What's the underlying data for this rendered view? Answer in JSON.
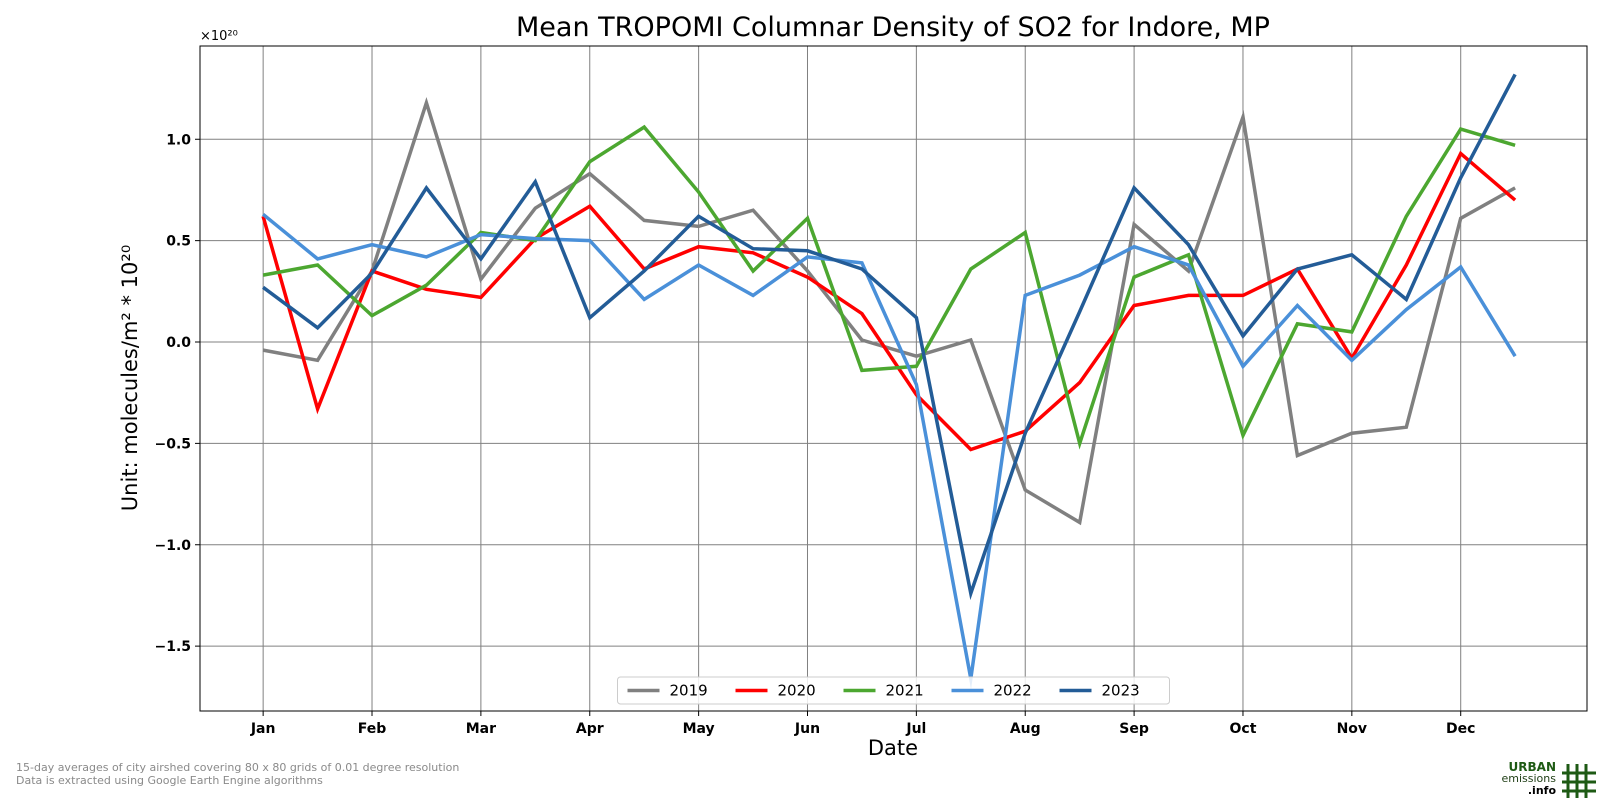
{
  "chart_data": {
    "type": "line",
    "title": "Mean TROPOMI Columnar Density of SO2 for Indore, MP",
    "xlabel": "Date",
    "ylabel": "Unit: molecules/m² * 10²⁰",
    "y_offset_label": "×10²⁰",
    "ylim": [
      -1.82,
      1.46
    ],
    "yticks": [
      -1.5,
      -1.0,
      -0.5,
      0.0,
      0.5,
      1.0
    ],
    "ytick_labels": [
      "−1.5",
      "−1.0",
      "−0.5",
      "0.0",
      "0.5",
      "1.0"
    ],
    "xlim": [
      0.42,
      13.16
    ],
    "month_ticks": [
      1,
      2,
      3,
      4,
      5,
      6,
      7,
      8,
      9,
      10,
      11,
      12
    ],
    "month_labels": [
      "Jan",
      "Feb",
      "Mar",
      "Apr",
      "May",
      "Jun",
      "Jul",
      "Aug",
      "Sep",
      "Oct",
      "Nov",
      "Dec"
    ],
    "x": [
      1,
      1.5,
      2,
      2.5,
      3,
      3.5,
      4,
      4.5,
      5,
      5.5,
      6,
      6.5,
      7,
      7.5,
      8,
      8.5,
      9,
      9.5,
      10,
      10.5,
      11,
      11.5,
      12,
      12.5
    ],
    "grid": true,
    "legend_position": "bottom-center",
    "series": [
      {
        "name": "2019",
        "color": "#808080",
        "values": [
          -0.04,
          -0.09,
          0.35,
          1.18,
          0.31,
          0.66,
          0.83,
          0.6,
          0.57,
          0.65,
          0.35,
          0.01,
          -0.07,
          0.01,
          -0.73,
          -0.89,
          0.58,
          0.35,
          1.11,
          -0.56,
          -0.45,
          -0.42,
          0.61,
          0.76
        ]
      },
      {
        "name": "2020",
        "color": "#ff0000",
        "values": [
          0.62,
          -0.33,
          0.35,
          0.26,
          0.22,
          0.51,
          0.67,
          0.36,
          0.47,
          0.44,
          0.32,
          0.14,
          -0.26,
          -0.53,
          -0.44,
          -0.2,
          0.18,
          0.23,
          0.23,
          0.36,
          -0.08,
          0.38,
          0.93,
          0.7
        ]
      },
      {
        "name": "2021",
        "color": "#4ca730",
        "values": [
          0.33,
          0.38,
          0.13,
          0.28,
          0.54,
          0.5,
          0.89,
          1.06,
          0.74,
          0.35,
          0.61,
          -0.14,
          -0.12,
          0.36,
          0.54,
          -0.5,
          0.32,
          0.43,
          -0.46,
          0.09,
          0.05,
          0.62,
          1.05,
          0.97
        ]
      },
      {
        "name": "2022",
        "color": "#4a90d9",
        "values": [
          0.63,
          0.41,
          0.48,
          0.42,
          0.53,
          0.51,
          0.5,
          0.21,
          0.38,
          0.23,
          0.42,
          0.39,
          -0.21,
          -1.66,
          0.23,
          0.33,
          0.47,
          0.38,
          -0.12,
          0.18,
          -0.09,
          0.16,
          0.37,
          -0.07
        ]
      },
      {
        "name": "2023",
        "color": "#235c97",
        "values": [
          0.27,
          0.07,
          0.34,
          0.76,
          0.41,
          0.79,
          0.12,
          0.35,
          0.62,
          0.46,
          0.45,
          0.36,
          0.12,
          -1.24,
          -0.45,
          0.15,
          0.76,
          0.48,
          0.03,
          0.36,
          0.43,
          0.21,
          0.81,
          1.32
        ]
      }
    ]
  },
  "footer": {
    "line1": "15-day averages of city airshed covering 80 x 80 grids of 0.01 degree resolution",
    "line2": "Data is extracted using Google Earth Engine algorithms"
  },
  "logo": {
    "line1": "URBAN",
    "line2": "emissions",
    "line3": ".info",
    "color": "#1e5a14"
  }
}
